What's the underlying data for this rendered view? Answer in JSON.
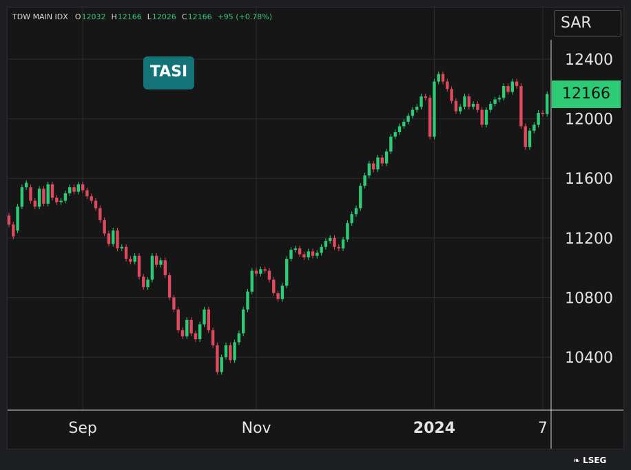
{
  "header": {
    "ticker": "TDW MAIN IDX",
    "ohlc": [
      {
        "label": "O",
        "value": "12032"
      },
      {
        "label": "H",
        "value": "12166"
      },
      {
        "label": "L",
        "value": "12026"
      },
      {
        "label": "C",
        "value": "12166"
      }
    ],
    "change": "+95 (+0.78%)"
  },
  "currency": "SAR",
  "badge": "TASI",
  "last_price_label": "12166",
  "brand": "LSEG",
  "colors": {
    "up": "#2ecb77",
    "down": "#e04a5e",
    "badge": "#137377",
    "background": "#161616",
    "grid": "#2e2e2e"
  },
  "chart_data": {
    "type": "candlestick",
    "ylim": [
      10080,
      12600
    ],
    "yticks": [
      10400,
      10800,
      11200,
      11600,
      12000,
      12400
    ],
    "ytick_labels": [
      "10400",
      "10800",
      "11200",
      "11600",
      "12000",
      "12400"
    ],
    "xticks": [
      {
        "label": "Sep",
        "index": 17
      },
      {
        "label": "Nov",
        "index": 57
      },
      {
        "label": "2024",
        "index": 98
      },
      {
        "label": "7",
        "index": 123
      }
    ],
    "last_price": 12166,
    "candles": [
      [
        11350,
        11290
      ],
      [
        11290,
        11210
      ],
      [
        11250,
        11410
      ],
      [
        11410,
        11540
      ],
      [
        11540,
        11570
      ],
      [
        11540,
        11450
      ],
      [
        11450,
        11410
      ],
      [
        11410,
        11530
      ],
      [
        11530,
        11430
      ],
      [
        11430,
        11560
      ],
      [
        11560,
        11470
      ],
      [
        11470,
        11440
      ],
      [
        11440,
        11450
      ],
      [
        11450,
        11500
      ],
      [
        11500,
        11540
      ],
      [
        11540,
        11510
      ],
      [
        11510,
        11560
      ],
      [
        11560,
        11520
      ],
      [
        11520,
        11480
      ],
      [
        11480,
        11450
      ],
      [
        11450,
        11400
      ],
      [
        11400,
        11320
      ],
      [
        11320,
        11230
      ],
      [
        11230,
        11160
      ],
      [
        11160,
        11250
      ],
      [
        11250,
        11130
      ],
      [
        11130,
        11140
      ],
      [
        11140,
        11060
      ],
      [
        11060,
        11040
      ],
      [
        11040,
        11080
      ],
      [
        11080,
        10940
      ],
      [
        10940,
        10870
      ],
      [
        10870,
        10920
      ],
      [
        10920,
        11080
      ],
      [
        11080,
        11020
      ],
      [
        11020,
        11050
      ],
      [
        11050,
        10950
      ],
      [
        10950,
        10800
      ],
      [
        10800,
        10720
      ],
      [
        10720,
        10580
      ],
      [
        10580,
        10540
      ],
      [
        10540,
        10650
      ],
      [
        10650,
        10560
      ],
      [
        10560,
        10520
      ],
      [
        10520,
        10620
      ],
      [
        10620,
        10720
      ],
      [
        10720,
        10580
      ],
      [
        10580,
        10480
      ],
      [
        10480,
        10300
      ],
      [
        10300,
        10400
      ],
      [
        10400,
        10480
      ],
      [
        10480,
        10380
      ],
      [
        10380,
        10500
      ],
      [
        10500,
        10560
      ],
      [
        10560,
        10720
      ],
      [
        10720,
        10840
      ],
      [
        10840,
        10980
      ],
      [
        10980,
        10960
      ],
      [
        10960,
        10990
      ],
      [
        10990,
        10980
      ],
      [
        10980,
        10920
      ],
      [
        10920,
        10830
      ],
      [
        10830,
        10790
      ],
      [
        10790,
        10880
      ],
      [
        10880,
        11060
      ],
      [
        11060,
        11120
      ],
      [
        11120,
        11130
      ],
      [
        11130,
        11090
      ],
      [
        11090,
        11070
      ],
      [
        11070,
        11110
      ],
      [
        11110,
        11080
      ],
      [
        11080,
        11100
      ],
      [
        11100,
        11140
      ],
      [
        11140,
        11180
      ],
      [
        11180,
        11200
      ],
      [
        11200,
        11140
      ],
      [
        11140,
        11130
      ],
      [
        11130,
        11190
      ],
      [
        11190,
        11300
      ],
      [
        11300,
        11360
      ],
      [
        11360,
        11400
      ],
      [
        11400,
        11550
      ],
      [
        11550,
        11620
      ],
      [
        11620,
        11700
      ],
      [
        11700,
        11660
      ],
      [
        11660,
        11740
      ],
      [
        11740,
        11700
      ],
      [
        11700,
        11780
      ],
      [
        11780,
        11880
      ],
      [
        11880,
        11910
      ],
      [
        11910,
        11950
      ],
      [
        11950,
        11980
      ],
      [
        11980,
        12020
      ],
      [
        12020,
        12060
      ],
      [
        12060,
        12080
      ],
      [
        12080,
        12150
      ],
      [
        12150,
        12140
      ],
      [
        12140,
        11880
      ],
      [
        11880,
        12250
      ],
      [
        12250,
        12300
      ],
      [
        12300,
        12250
      ],
      [
        12250,
        12200
      ],
      [
        12200,
        12120
      ],
      [
        12120,
        12050
      ],
      [
        12050,
        12080
      ],
      [
        12080,
        12150
      ],
      [
        12150,
        12080
      ],
      [
        12080,
        12100
      ],
      [
        12100,
        12060
      ],
      [
        12060,
        11960
      ],
      [
        11960,
        12060
      ],
      [
        12060,
        12100
      ],
      [
        12100,
        12130
      ],
      [
        12130,
        12140
      ],
      [
        12140,
        12220
      ],
      [
        12220,
        12180
      ],
      [
        12180,
        12250
      ],
      [
        12250,
        12220
      ],
      [
        12220,
        11950
      ],
      [
        11950,
        11810
      ],
      [
        11810,
        11920
      ],
      [
        11920,
        11960
      ],
      [
        11960,
        12040
      ],
      [
        12040,
        12032
      ],
      [
        12032,
        12166
      ]
    ]
  }
}
